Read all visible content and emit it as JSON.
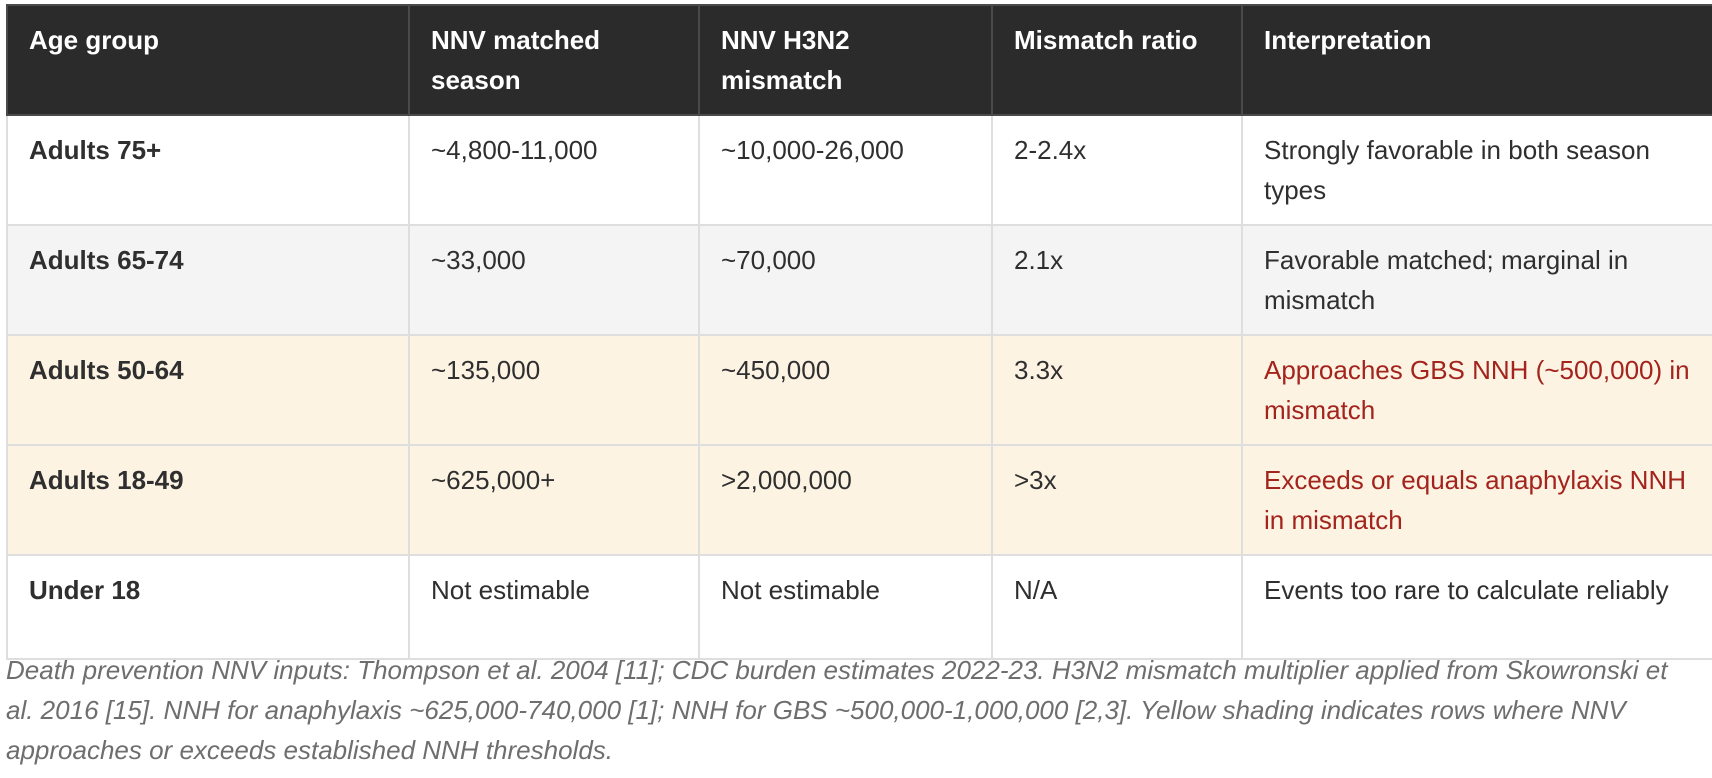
{
  "table": {
    "headers": [
      "Age group",
      "NNV matched season",
      "NNV H3N2 mismatch",
      "Mismatch ratio",
      "Interpretation"
    ],
    "rows": [
      {
        "age_group": "Adults 75+",
        "nnv_matched": "~4,800-11,000",
        "nnv_mismatch": "~10,000-26,000",
        "ratio": "2-2.4x",
        "interpretation": "Strongly favorable in both season types",
        "shading": "white"
      },
      {
        "age_group": "Adults 65-74",
        "nnv_matched": "~33,000",
        "nnv_mismatch": "~70,000",
        "ratio": "2.1x",
        "interpretation": "Favorable matched; marginal in mismatch",
        "shading": "grey"
      },
      {
        "age_group": "Adults 50-64",
        "nnv_matched": "~135,000",
        "nnv_mismatch": "~450,000",
        "ratio": "3.3x",
        "interpretation": "Approaches GBS NNH (~500,000) in mismatch",
        "shading": "yellow"
      },
      {
        "age_group": "Adults 18-49",
        "nnv_matched": "~625,000+",
        "nnv_mismatch": ">2,000,000",
        "ratio": ">3x",
        "interpretation": "Exceeds or equals anaphylaxis NNH in mismatch",
        "shading": "yellow"
      },
      {
        "age_group": "Under 18",
        "nnv_matched": "Not estimable",
        "nnv_mismatch": "Not estimable",
        "ratio": "N/A",
        "interpretation": "Events too rare to calculate reliably",
        "shading": "white"
      }
    ]
  },
  "footnote": "Death prevention NNV inputs: Thompson et al. 2004 [11]; CDC burden estimates 2022-23. H3N2 mismatch multiplier applied from Skowronski et al. 2016 [15]. NNH for anaphylaxis ~625,000-740,000 [1]; NNH for GBS ~500,000-1,000,000 [2,3]. Yellow shading indicates rows where NNV approaches or exceeds established NNH thresholds.",
  "colors": {
    "header_bg": "#2b2b2b",
    "header_text": "#ffffff",
    "row_grey": "#f4f4f4",
    "row_yellow": "#fdf3e3",
    "warning_text": "#a3231d",
    "footnote_text": "#6e6e6e"
  }
}
